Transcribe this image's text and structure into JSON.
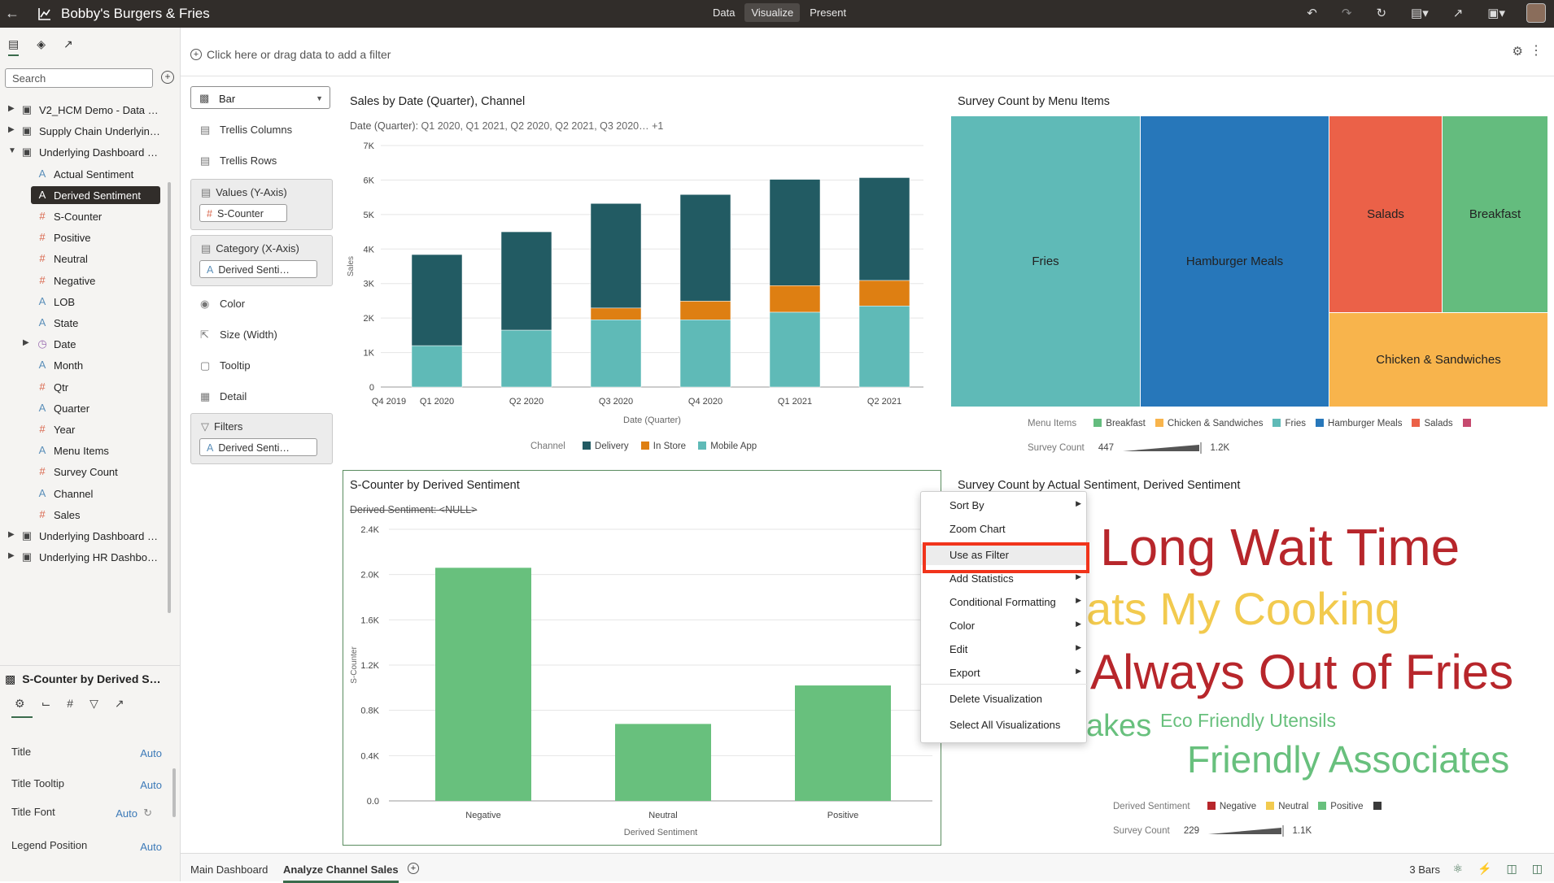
{
  "app": {
    "title": "Bobby's Burgers & Fries",
    "modes": [
      "Data",
      "Visualize",
      "Present"
    ],
    "active_mode": "Visualize"
  },
  "left_panel": {
    "search_placeholder": "Search",
    "tree": [
      {
        "label": "V2_HCM Demo - Data …",
        "type": "dataset",
        "level": 0,
        "expand": "▶"
      },
      {
        "label": "Supply Chain Underlyin…",
        "type": "dataset",
        "level": 0,
        "expand": "▶"
      },
      {
        "label": "Underlying Dashboard …",
        "type": "dataset",
        "level": 0,
        "expand": "▼"
      },
      {
        "label": "Actual Sentiment",
        "type": "attribute",
        "level": 1
      },
      {
        "label": "Derived Sentiment",
        "type": "attribute",
        "level": 1,
        "selected": true
      },
      {
        "label": "S-Counter",
        "type": "measure",
        "level": 1
      },
      {
        "label": "Positive",
        "type": "measure",
        "level": 1
      },
      {
        "label": "Neutral",
        "type": "measure",
        "level": 1
      },
      {
        "label": "Negative",
        "type": "measure",
        "level": 1
      },
      {
        "label": "LOB",
        "type": "attribute",
        "level": 1
      },
      {
        "label": "State",
        "type": "attribute",
        "level": 1
      },
      {
        "label": "Date",
        "type": "date",
        "level": 1,
        "expand": "▶"
      },
      {
        "label": "Month",
        "type": "attribute",
        "level": 1
      },
      {
        "label": "Qtr",
        "type": "measure",
        "level": 1
      },
      {
        "label": "Quarter",
        "type": "attribute",
        "level": 1
      },
      {
        "label": "Year",
        "type": "measure",
        "level": 1
      },
      {
        "label": "Menu Items",
        "type": "attribute",
        "level": 1
      },
      {
        "label": "Survey Count",
        "type": "measure",
        "level": 1
      },
      {
        "label": "Channel",
        "type": "attribute",
        "level": 1
      },
      {
        "label": "Sales",
        "type": "measure",
        "level": 1
      },
      {
        "label": "Underlying Dashboard …",
        "type": "dataset",
        "level": 0,
        "expand": "▶"
      },
      {
        "label": "Underlying HR Dashbo…",
        "type": "dataset",
        "level": 0,
        "expand": "▶"
      }
    ]
  },
  "properties": {
    "title": "S-Counter by Derived S…",
    "rows": [
      {
        "label": "Title",
        "value": "Auto"
      },
      {
        "label": "Title Tooltip",
        "value": "Auto"
      },
      {
        "label": "Title Font",
        "value": "Auto"
      },
      {
        "label": "Legend Position",
        "value": "Auto"
      }
    ]
  },
  "filter_bar": {
    "placeholder": "Click here or drag data to add a filter"
  },
  "grammar": {
    "viz_type": "Bar",
    "trellis_columns": "Trellis Columns",
    "trellis_rows": "Trellis Rows",
    "values_label": "Values (Y-Axis)",
    "values_chip": "S-Counter",
    "category_label": "Category (X-Axis)",
    "category_chip": "Derived Senti…",
    "color": "Color",
    "size": "Size (Width)",
    "tooltip": "Tooltip",
    "detail": "Detail",
    "filters_label": "Filters",
    "filters_chip": "Derived Senti…"
  },
  "viz1": {
    "title": "Sales by Date (Quarter), Channel",
    "filter_label": "Date (Quarter):",
    "filter_values": "Q1 2020, Q1 2021, Q2 2020, Q2 2021, Q3 2020… +1",
    "legend_title": "Channel",
    "colors": {
      "Delivery": "#225b63",
      "In Store": "#de7f12",
      "Mobile App": "#5fbab7"
    }
  },
  "viz2": {
    "title": "Survey Count by Menu Items",
    "tiles": [
      {
        "label": "Fries",
        "color": "#5fbab7"
      },
      {
        "label": "Hamburger Meals",
        "color": "#2777ba"
      },
      {
        "label": "Salads",
        "color": "#eb6148"
      },
      {
        "label": "Breakfast",
        "color": "#64bc7e"
      },
      {
        "label": "Chicken & Sandwiches",
        "color": "#f8b44c"
      }
    ],
    "legend_title": "Menu Items",
    "legend": [
      {
        "label": "Breakfast",
        "color": "#64bc7e"
      },
      {
        "label": "Chicken & Sandwiches",
        "color": "#f8b44c"
      },
      {
        "label": "Fries",
        "color": "#5fbab7"
      },
      {
        "label": "Hamburger Meals",
        "color": "#2777ba"
      },
      {
        "label": "Salads",
        "color": "#eb6148"
      },
      {
        "label": "",
        "color": "#c64a6f"
      }
    ],
    "size_label": "Survey Count",
    "size_min": "447",
    "size_max": "1.2K"
  },
  "viz3": {
    "title": "S-Counter by Derived Sentiment",
    "filter_strike": "Derived Sentiment: <NULL>",
    "bar_color": "#68c07d"
  },
  "viz4": {
    "title": "Survey Count by Actual Sentiment, Derived Sentiment",
    "words": [
      {
        "text": "Long Wait Time",
        "color": "#b7262b"
      },
      {
        "text": "ats My Cooking",
        "color": "#f2ca4e"
      },
      {
        "text": "Always Out of Fries",
        "color": "#b7262b"
      },
      {
        "text": "akes",
        "color": "#68c07d"
      },
      {
        "text": "Eco Friendly Utensils",
        "color": "#68c07d"
      },
      {
        "text": "Friendly Associates",
        "color": "#68c07d"
      }
    ],
    "legend_title": "Derived Sentiment",
    "legend": [
      {
        "label": "Negative",
        "color": "#b7262b"
      },
      {
        "label": "Neutral",
        "color": "#f2ca4e"
      },
      {
        "label": "Positive",
        "color": "#68c07d"
      },
      {
        "label": "",
        "color": "#3a3a3a"
      }
    ],
    "size_label": "Survey Count",
    "size_min": "229",
    "size_max": "1.1K"
  },
  "context_menu": {
    "items": [
      {
        "label": "Sort By",
        "submenu": true
      },
      {
        "label": "Zoom Chart",
        "submenu": false
      },
      {
        "label": "Use as Filter",
        "submenu": false,
        "highlighted": true
      },
      {
        "label": "Add Statistics",
        "submenu": true
      },
      {
        "label": "Conditional Formatting",
        "submenu": true
      },
      {
        "label": "Color",
        "submenu": true
      },
      {
        "label": "Edit",
        "submenu": true
      },
      {
        "label": "Export",
        "submenu": true
      },
      {
        "label": "Delete Visualization",
        "submenu": false
      },
      {
        "label": "Select All Visualizations",
        "submenu": false
      }
    ]
  },
  "bottom": {
    "tabs": [
      "Main Dashboard",
      "Analyze Channel Sales"
    ],
    "active_tab": "Analyze Channel Sales",
    "status": "3 Bars"
  },
  "chart_data": [
    {
      "type": "bar",
      "stacked": true,
      "title": "Sales by Date (Quarter), Channel",
      "xlabel": "Date (Quarter)",
      "ylabel": "Sales",
      "x_ticks": [
        "Q4 2019",
        "Q1 2020",
        "Q2 2020",
        "Q3 2020",
        "Q4 2020",
        "Q1 2021",
        "Q2 2021"
      ],
      "categories": [
        "Q1 2020",
        "Q2 2020",
        "Q3 2020",
        "Q4 2020",
        "Q1 2021",
        "Q2 2021"
      ],
      "y_ticks": [
        "0",
        "1K",
        "2K",
        "3K",
        "4K",
        "5K",
        "6K",
        "7K"
      ],
      "ylim": [
        0,
        7000
      ],
      "series": [
        {
          "name": "Mobile App",
          "values": [
            1200,
            1650,
            1950,
            1950,
            2170,
            2350
          ]
        },
        {
          "name": "In Store",
          "values": [
            0,
            0,
            340,
            540,
            770,
            740
          ]
        },
        {
          "name": "Delivery",
          "values": [
            2640,
            2850,
            3030,
            3090,
            3080,
            2980
          ]
        }
      ],
      "legend": "bottom"
    },
    {
      "type": "heatmap",
      "title": "Survey Count by Menu Items",
      "categories": [
        "Fries",
        "Hamburger Meals",
        "Salads",
        "Breakfast",
        "Chicken & Sandwiches"
      ],
      "values": [
        1200,
        1200,
        447,
        447,
        680
      ]
    },
    {
      "type": "bar",
      "title": "S-Counter by Derived Sentiment",
      "xlabel": "Derived Sentiment",
      "ylabel": "S-Counter",
      "categories": [
        "Negative",
        "Neutral",
        "Positive"
      ],
      "values": [
        2060,
        680,
        1020
      ],
      "y_ticks": [
        "0.0",
        "0.4K",
        "0.8K",
        "1.2K",
        "1.6K",
        "2.0K",
        "2.4K"
      ],
      "ylim": [
        0,
        2400
      ]
    }
  ]
}
